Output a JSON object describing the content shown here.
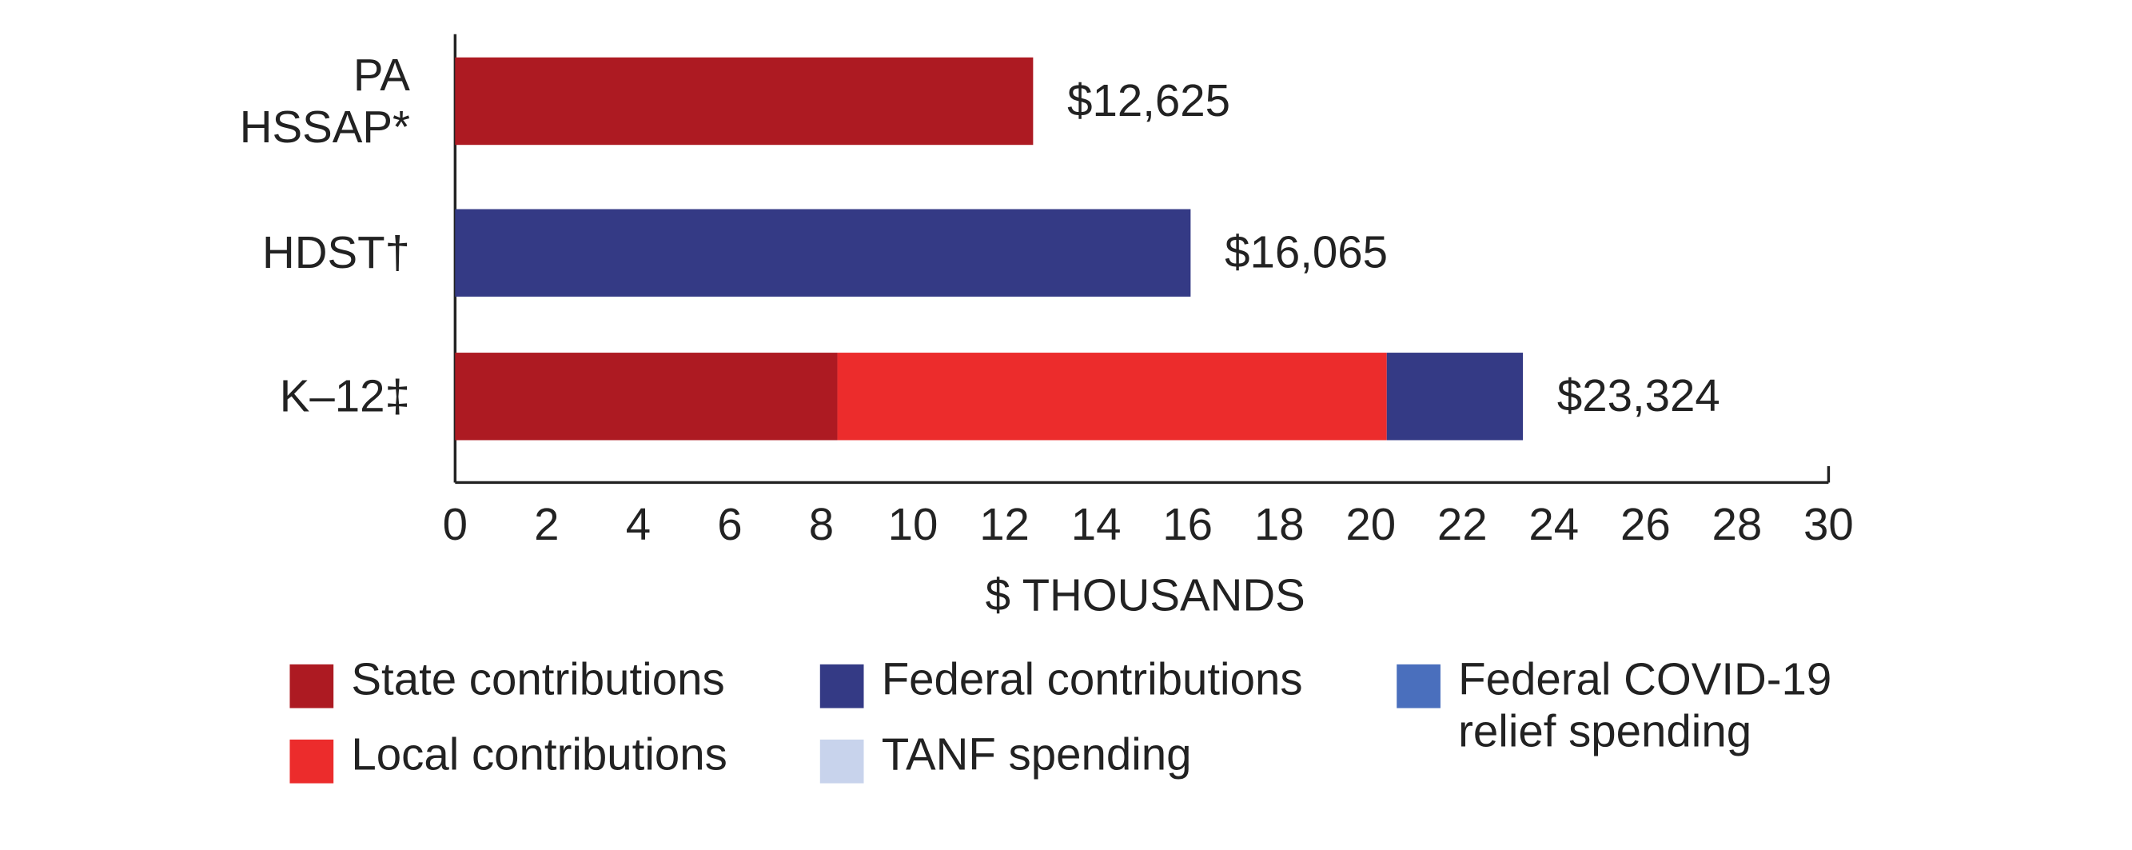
{
  "chart_data": {
    "type": "stacked_barh",
    "categories": [
      "PA HSSAP*",
      "HDST†",
      "K–12‡"
    ],
    "series": [
      {
        "name": "State contributions",
        "color": "#ad1a22",
        "values": [
          12.625,
          null,
          8.35
        ]
      },
      {
        "name": "Local contributions",
        "color": "#ec2c2c",
        "values": [
          null,
          null,
          12.0
        ]
      },
      {
        "name": "Federal contributions",
        "color": "#343a85",
        "values": [
          null,
          16.065,
          2.974
        ]
      },
      {
        "name": "TANF spending",
        "color": "#c8d3ec",
        "values": [
          null,
          null,
          null
        ]
      },
      {
        "name": "Federal COVID-19 relief spending",
        "color": "#4a6fbd",
        "values": [
          null,
          null,
          null
        ]
      }
    ],
    "totals": [
      12.625,
      16.065,
      23.324
    ],
    "total_labels": [
      "$12,625",
      "$16,065",
      "$23,324"
    ],
    "xlabel": "$ THOUSANDS",
    "xlim": [
      0,
      30
    ],
    "xticks": [
      0,
      2,
      4,
      6,
      8,
      10,
      12,
      14,
      16,
      18,
      20,
      22,
      24,
      26,
      28,
      30
    ]
  }
}
